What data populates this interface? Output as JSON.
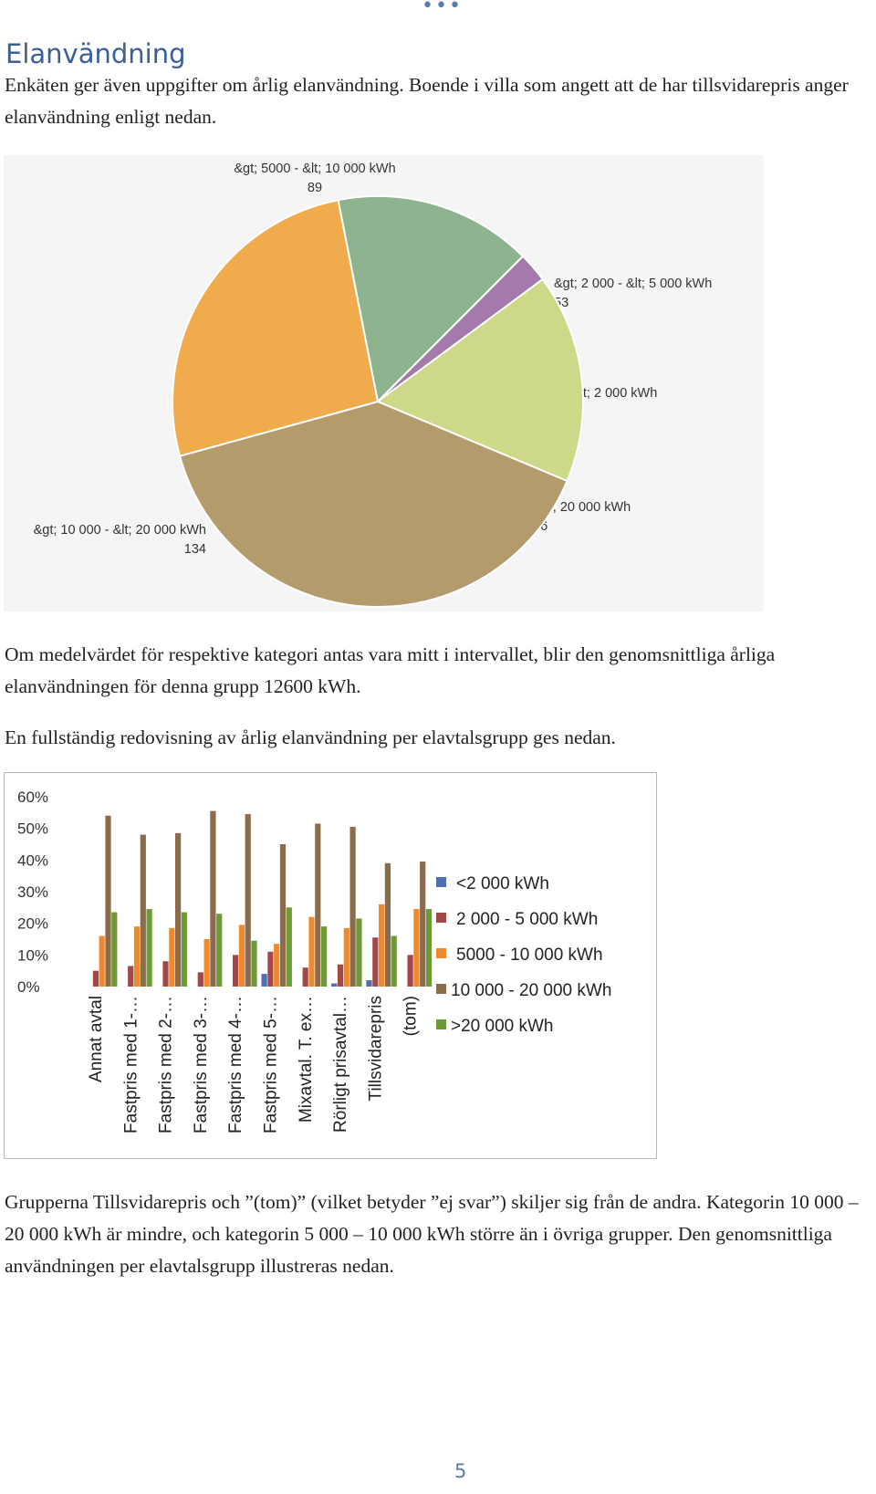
{
  "header": {
    "dots": "•••"
  },
  "section": {
    "title": "Elanvändning",
    "intro": "Enkäten ger även uppgifter om årlig elanvändning. Boende i villa som angett att de har tillsvidarepris anger elanvändning enligt nedan.",
    "average_text": "Om medelvärdet för respektive kategori antas vara mitt i intervallet, blir den genomsnittliga årliga elanvändningen för denna grupp 12600 kWh.",
    "full_report_text": "En fullständig redovisning av årlig elanvändning per elavtalsgrupp ges nedan.",
    "conclusion_text": "Grupperna Tillsvidarepris och ”(tom)” (vilket betyder ”ej svar”) skiljer sig från de andra. Kategorin 10 000 – 20 000 kWh är mindre, och kategorin 5 000 – 10 000 kWh större än i övriga grupper. Den genomsnittliga användningen per elavtalsgrupp illustreras nedan."
  },
  "page_number": "5",
  "chart_data": [
    {
      "type": "pie",
      "slices": [
        {
          "label": "&gt; 2 000 - &lt; 5 000 kWh",
          "value": 53,
          "color": "#8db38f"
        },
        {
          "label": "&lt; 2 000 kWh",
          "value": 8,
          "color": "#a679ac"
        },
        {
          "label": "&gt; 20 000 kWh",
          "value": 56,
          "color": "#cdd889"
        },
        {
          "label": "&gt; 10 000 - &lt; 20 000 kWh",
          "value": 134,
          "color": "#b39b6b"
        },
        {
          "label": "&gt; 5000 - &lt; 10 000 kWh",
          "value": 89,
          "color": "#f0ab4c"
        }
      ]
    },
    {
      "type": "bar",
      "categories": [
        "Annat avtal",
        "Fastpris med 1-…",
        "Fastpris med 2-…",
        "Fastpris med 3-…",
        "Fastpris med 4-…",
        "Fastpris med 5-…",
        "Mixavtal. T. ex…",
        "Rörligt prisavtal…",
        "Tillsvidarepris",
        "(tom)"
      ],
      "y_ticks": [
        "60%",
        "50%",
        "40%",
        "30%",
        "20%",
        "10%",
        "0%"
      ],
      "ylim": [
        0,
        60
      ],
      "legend_position": "right",
      "series": [
        {
          "name": "<2 000 kWh",
          "color": "#4f6fb0",
          "values": [
            0,
            0,
            0,
            0,
            0,
            4,
            0,
            1,
            2,
            0
          ]
        },
        {
          "name": "2 000 - 5 000 kWh",
          "color": "#a2484a",
          "values": [
            5,
            6.5,
            8,
            4.5,
            10,
            11,
            6,
            7,
            15.5,
            10
          ]
        },
        {
          "name": "5000 - 10 000 kWh",
          "color": "#ef8a2c",
          "values": [
            16,
            19,
            18.5,
            15,
            19.5,
            13.5,
            22,
            18.5,
            26,
            24.5
          ]
        },
        {
          "name": "10 000 - 20 000 kWh",
          "color": "#8c6a4c",
          "values": [
            54,
            48,
            48.5,
            55.5,
            54.5,
            45,
            51.5,
            50.5,
            39,
            39.5
          ]
        },
        {
          "name": ">20 000 kWh",
          "color": "#6c9a34",
          "values": [
            23.5,
            24.5,
            23.5,
            23,
            14.5,
            25,
            19,
            21.5,
            16,
            24.5
          ]
        }
      ]
    }
  ]
}
